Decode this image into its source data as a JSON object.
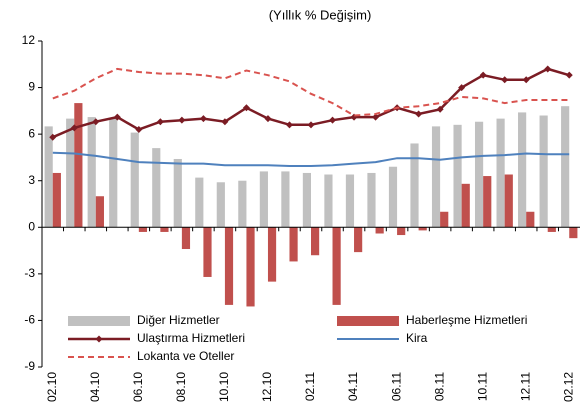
{
  "chart_data": {
    "type": "bar",
    "title": "(Yıllık % Değişim)",
    "categories": [
      "02.10",
      null,
      "04.10",
      null,
      "06.10",
      null,
      "08.10",
      null,
      "10.10",
      null,
      "12.10",
      null,
      "02.11",
      null,
      "04.11",
      null,
      "06.11",
      null,
      "08.11",
      null,
      "10.11",
      null,
      "12.11",
      null,
      "02.12"
    ],
    "ylim": [
      -9,
      12
    ],
    "yticks": [
      -9,
      -6,
      -3,
      0,
      3,
      6,
      9,
      12
    ],
    "grid": false,
    "legend": "bottom",
    "series": [
      {
        "name": "Diğer Hizmetler",
        "kind": "bar",
        "color": "#c0c0c0",
        "values": [
          6.5,
          7.0,
          7.1,
          7.0,
          6.1,
          5.1,
          4.4,
          3.2,
          2.9,
          3.0,
          3.6,
          3.6,
          3.5,
          3.4,
          3.4,
          3.5,
          3.9,
          5.4,
          6.5,
          6.6,
          6.8,
          7.0,
          7.4,
          7.2,
          7.8
        ]
      },
      {
        "name": "Haberleşme Hizmetleri",
        "kind": "bar",
        "color": "#c0504d",
        "values": [
          3.5,
          8.0,
          2.0,
          0,
          -0.3,
          -0.3,
          -1.4,
          -3.2,
          -5.0,
          -5.1,
          -3.5,
          -2.2,
          -1.8,
          -5.0,
          -1.6,
          -0.4,
          -0.5,
          -0.2,
          1.0,
          2.8,
          3.3,
          3.4,
          1.0,
          -0.3,
          -0.7
        ]
      },
      {
        "name": "Ulaştırma Hizmetleri",
        "kind": "line",
        "marker": "diamond",
        "color": "#7b1c24",
        "values": [
          5.8,
          6.4,
          6.8,
          7.1,
          6.3,
          6.8,
          6.9,
          7.0,
          6.8,
          7.7,
          7.0,
          6.6,
          6.6,
          6.9,
          7.1,
          7.1,
          7.7,
          7.3,
          7.6,
          9.0,
          9.8,
          9.5,
          9.5,
          10.2,
          9.8
        ]
      },
      {
        "name": "Kira",
        "kind": "line",
        "color": "#4f81bd",
        "values": [
          4.8,
          4.75,
          4.6,
          4.4,
          4.2,
          4.15,
          4.1,
          4.1,
          4.0,
          4.0,
          4.0,
          3.95,
          3.95,
          4.0,
          4.1,
          4.2,
          4.45,
          4.45,
          4.35,
          4.5,
          4.6,
          4.65,
          4.75,
          4.7,
          4.7
        ]
      },
      {
        "name": "Lokanta ve Oteller",
        "kind": "line",
        "dash": true,
        "color": "#d9534f",
        "values": [
          8.3,
          8.8,
          9.6,
          10.2,
          10.0,
          9.9,
          9.9,
          9.8,
          9.6,
          10.1,
          9.8,
          9.4,
          8.6,
          8.0,
          7.2,
          7.3,
          7.7,
          7.8,
          8.0,
          8.4,
          8.3,
          8.0,
          8.2,
          8.2,
          8.2
        ]
      }
    ]
  }
}
